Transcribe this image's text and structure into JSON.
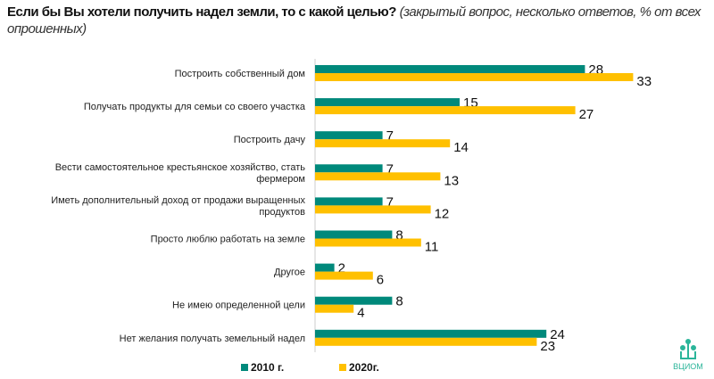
{
  "title": {
    "main": "Если бы Вы хотели получить надел земли, то с какой целью?",
    "note": " (закрытый вопрос, несколько ответов, % от всех опрошенных)"
  },
  "colors": {
    "2010": "#00897B",
    "2020": "#FFC000"
  },
  "logo": "ВЦИОМ",
  "chart_data": {
    "type": "bar",
    "orientation": "horizontal",
    "categories": [
      [
        "Построить собственный дом"
      ],
      [
        "Получать продукты для семьи со своего участка"
      ],
      [
        "Построить дачу"
      ],
      [
        "Вести самостоятельное крестьянское хозяйство, стать",
        "фермером"
      ],
      [
        "Иметь дополнительный доход от продажи выращенных",
        "продуктов"
      ],
      [
        "Просто люблю работать на земле"
      ],
      [
        "Другое"
      ],
      [
        "Не имею определенной цели"
      ],
      [
        "Нет желания получать земельный надел"
      ]
    ],
    "series": [
      {
        "name": "2010 г.",
        "values": [
          28,
          15,
          7,
          7,
          7,
          8,
          2,
          8,
          24
        ]
      },
      {
        "name": "2020г.",
        "values": [
          33,
          27,
          14,
          13,
          12,
          11,
          6,
          4,
          23
        ]
      }
    ],
    "legend": "bottom",
    "grid": false,
    "xlim": [
      0,
      35
    ]
  }
}
